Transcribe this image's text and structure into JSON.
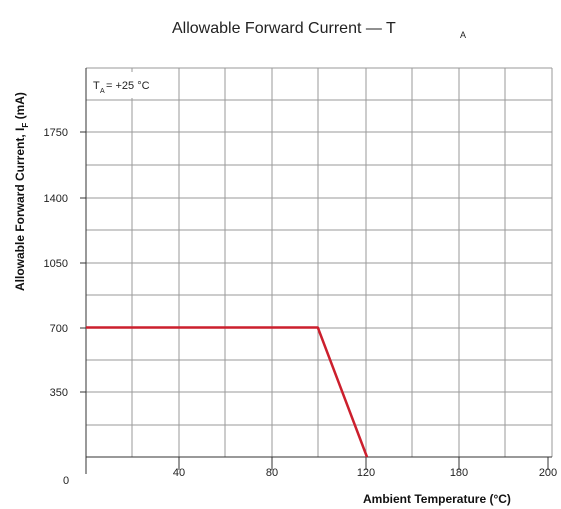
{
  "chart_data": {
    "type": "line",
    "title": "Allowable Forward Current — T",
    "title_subscript": "A",
    "xlabel": "Ambient Temperature (°C)",
    "ylabel": "Allowable Forward Current,  I",
    "ylabel_subscript": "F",
    "ylabel_unit": " (mA)",
    "annotation": {
      "prefix": "T",
      "subscript": "A",
      "suffix": "= +25 °C"
    },
    "x_tick_labels": [
      "40",
      "80",
      "120",
      "180",
      "200"
    ],
    "y_tick_labels": [
      "350",
      "700",
      "1050",
      "1400",
      "1750"
    ],
    "origin_label": "0",
    "grid": true,
    "series": [
      {
        "color": "#cc1f2d",
        "x": [
          0,
          99,
          120
        ],
        "y": [
          700,
          700,
          0
        ]
      }
    ]
  }
}
